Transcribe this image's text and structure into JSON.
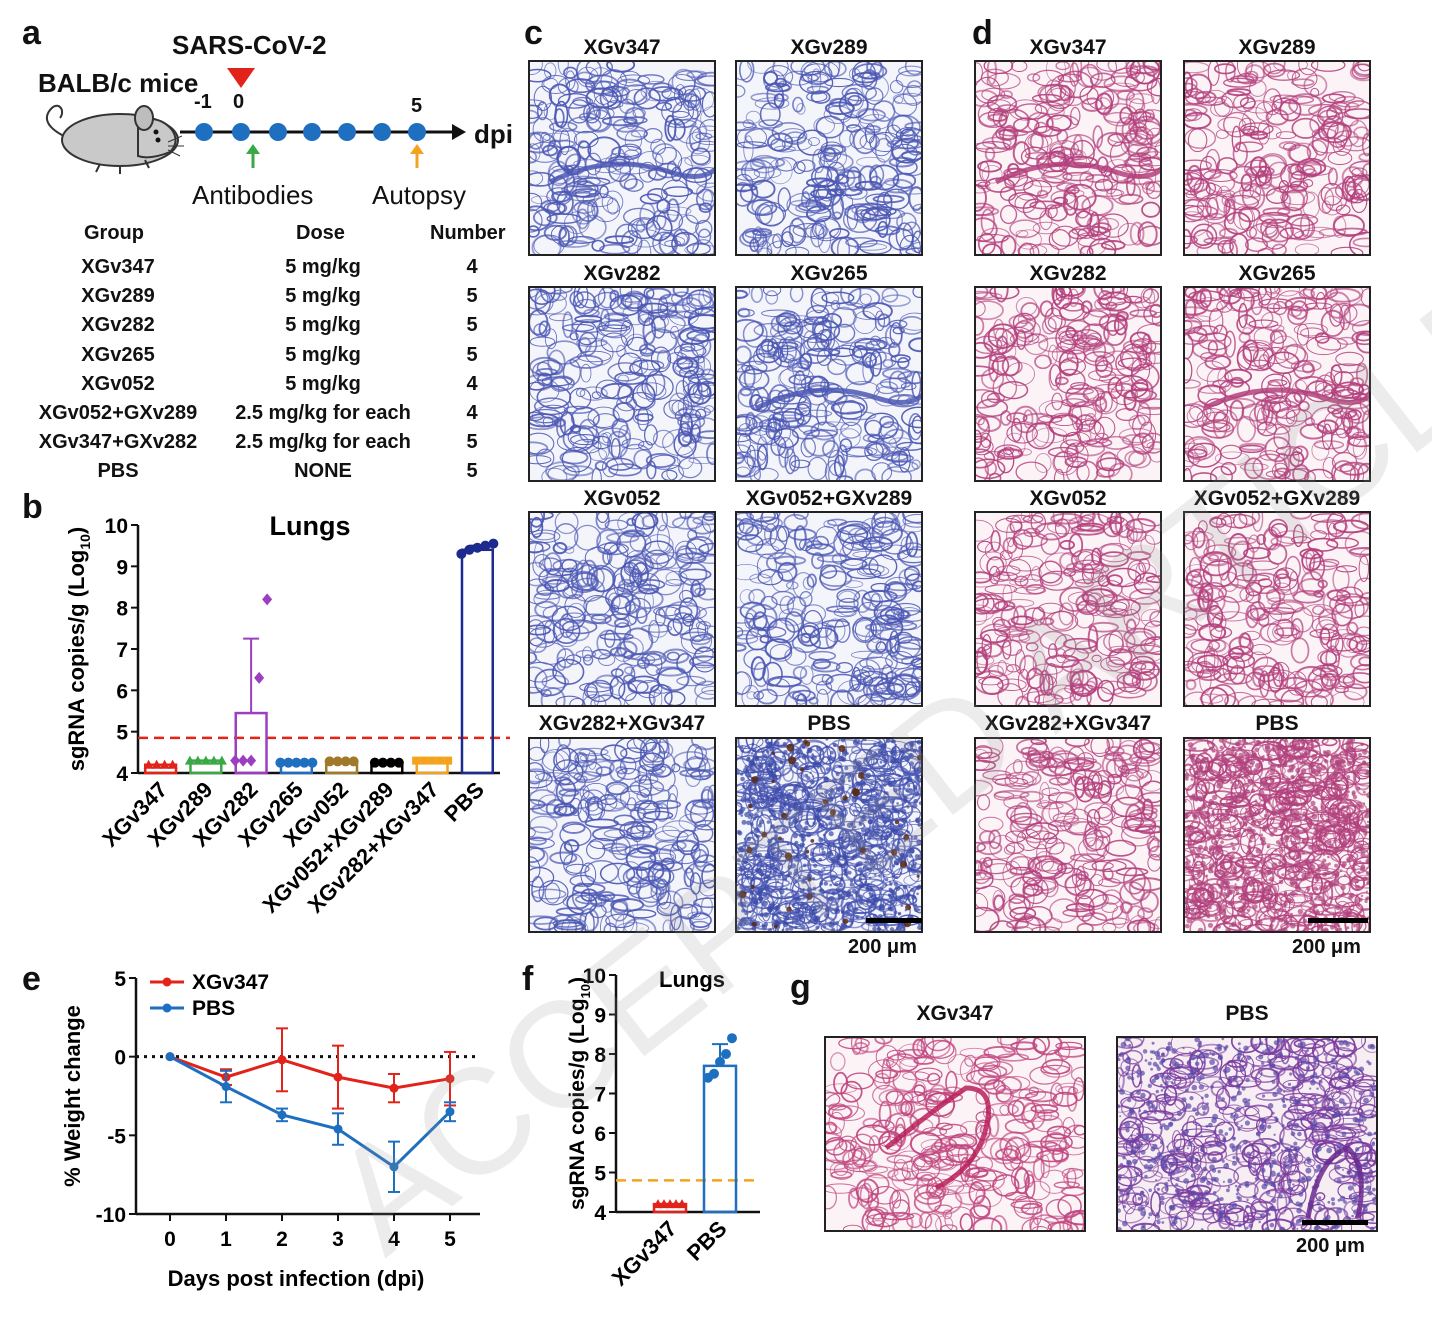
{
  "panel_labels": {
    "a": "a",
    "b": "b",
    "c": "c",
    "d": "d",
    "e": "e",
    "f": "f",
    "g": "g"
  },
  "panel_a": {
    "virus": "SARS-CoV-2",
    "mouse_label": "BALB/c mice",
    "tick_neg1": "-1",
    "tick_0": "0",
    "tick_5": "5",
    "axis_unit": "dpi",
    "antibodies_label": "Antibodies",
    "autopsy_label": "Autopsy",
    "table_headers": {
      "group": "Group",
      "dose": "Dose",
      "number": "Number"
    },
    "table_rows": [
      {
        "group": "XGv347",
        "dose": "5 mg/kg",
        "number": "4"
      },
      {
        "group": "XGv289",
        "dose": "5 mg/kg",
        "number": "5"
      },
      {
        "group": "XGv282",
        "dose": "5 mg/kg",
        "number": "5"
      },
      {
        "group": "XGv265",
        "dose": "5 mg/kg",
        "number": "5"
      },
      {
        "group": "XGv052",
        "dose": "5 mg/kg",
        "number": "4"
      },
      {
        "group": "XGv052+GXv289",
        "dose": "2.5 mg/kg for each",
        "number": "4"
      },
      {
        "group": "XGv347+GXv282",
        "dose": "2.5 mg/kg for each",
        "number": "5"
      },
      {
        "group": "PBS",
        "dose": "NONE",
        "number": "5"
      }
    ],
    "colors": {
      "virus_marker": "#e2231a",
      "timeline_dot": "#1f6fc0",
      "antibody_arrow": "#3aa845",
      "autopsy_arrow": "#f4a41c"
    }
  },
  "panel_c_titles": [
    "XGv347",
    "XGv289",
    "XGv282",
    "XGv265",
    "XGv052",
    "XGv052+GXv289",
    "XGv282+XGv347",
    "PBS"
  ],
  "panel_d_titles": [
    "XGv347",
    "XGv289",
    "XGv282",
    "XGv265",
    "XGv052",
    "XGv052+GXv289",
    "XGv282+XGv347",
    "PBS"
  ],
  "scale_label": "200 μm",
  "panel_g_titles": [
    "XGv347",
    "PBS"
  ],
  "watermark": "ACCEPTED ARTICLE PREVIEW",
  "chart_data": [
    {
      "id": "b",
      "type": "bar",
      "title": "Lungs",
      "ylabel": "sgRNA copies/g (Log10)",
      "ylim": [
        4,
        10
      ],
      "yticks": [
        "4",
        "5",
        "6",
        "7",
        "8",
        "9",
        "10"
      ],
      "categories": [
        "XGv347",
        "XGv289",
        "XGv282",
        "XGv265",
        "XGv052",
        "XGv052+XGv289",
        "XGv282+XGv347",
        "PBS"
      ],
      "values": [
        4.2,
        4.3,
        5.45,
        4.25,
        4.28,
        4.25,
        4.3,
        9.4
      ],
      "errors": [
        0,
        0,
        1.8,
        0,
        0,
        0,
        0,
        0.1
      ],
      "points": [
        [
          4.2,
          4.2,
          4.2,
          4.2
        ],
        [
          4.3,
          4.3,
          4.3,
          4.3,
          4.3
        ],
        [
          4.3,
          4.3,
          4.3,
          6.3,
          8.2
        ],
        [
          4.25,
          4.25,
          4.25,
          4.25,
          4.25
        ],
        [
          4.28,
          4.28,
          4.28,
          4.28
        ],
        [
          4.25,
          4.25,
          4.25,
          4.25
        ],
        [
          4.3,
          4.3,
          4.3,
          4.3,
          4.3
        ],
        [
          9.3,
          9.4,
          9.45,
          9.5,
          9.55
        ]
      ],
      "colors": [
        "#e2231a",
        "#3aa845",
        "#9b3fc0",
        "#1f6fc0",
        "#a07a2a",
        "#000000",
        "#f4a41c",
        "#1d2a8e"
      ],
      "markers": [
        "triangle",
        "triangle",
        "diamond",
        "circle",
        "circle",
        "circle",
        "square",
        "circle"
      ],
      "threshold": 4.85,
      "threshold_color": "#e2231a"
    },
    {
      "id": "e",
      "type": "line",
      "ylabel": "% Weight change",
      "xlabel": "Days post infection (dpi)",
      "x": [
        0,
        1,
        2,
        3,
        4,
        5
      ],
      "xticks": [
        "0",
        "1",
        "2",
        "3",
        "4",
        "5"
      ],
      "yticks": [
        "5",
        "0",
        "-5",
        "-10"
      ],
      "ylim": [
        -10,
        5
      ],
      "legend_position": "top-left",
      "series": [
        {
          "name": "XGv347",
          "values": [
            0,
            -1.3,
            -0.2,
            -1.3,
            -2.0,
            -1.4
          ],
          "errors": [
            0,
            0.5,
            2.0,
            2.0,
            0.9,
            1.7
          ],
          "color": "#e2231a"
        },
        {
          "name": "PBS",
          "values": [
            0,
            -1.9,
            -3.7,
            -4.6,
            -7.0,
            -3.5
          ],
          "errors": [
            0,
            1.0,
            0.4,
            1.0,
            1.6,
            0.6
          ],
          "color": "#1f6fc0"
        }
      ]
    },
    {
      "id": "f",
      "type": "bar",
      "title": "Lungs",
      "ylabel": "sgRNA copies/g (Log10)",
      "ylim": [
        4,
        10
      ],
      "yticks": [
        "4",
        "5",
        "6",
        "7",
        "8",
        "9",
        "10"
      ],
      "categories": [
        "XGv347",
        "PBS"
      ],
      "values": [
        4.2,
        7.7
      ],
      "errors": [
        0,
        0.55
      ],
      "points": [
        [
          4.2,
          4.2,
          4.2,
          4.2,
          4.2
        ],
        [
          7.4,
          7.5,
          7.8,
          8.0,
          8.4
        ]
      ],
      "colors": [
        "#e2231a",
        "#1f6fc0"
      ],
      "threshold": 4.8,
      "threshold_color": "#f4a41c"
    }
  ]
}
